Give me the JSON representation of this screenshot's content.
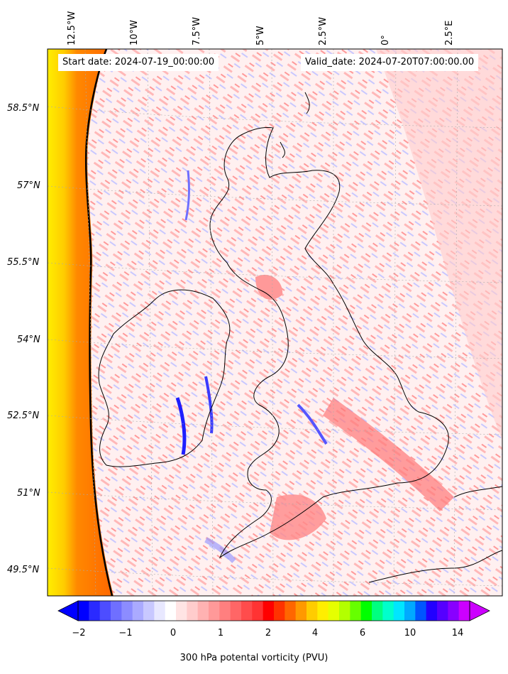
{
  "header": {
    "start_date": "Start date: 2024-07-19_00:00:00",
    "valid_date": "Valid_date: 2024-07-20T07:00:00.00"
  },
  "axes": {
    "longitude_labels": [
      "12.5°W",
      "10°W",
      "7.5°W",
      "5°W",
      "2.5°W",
      "0°",
      "2.5°E"
    ],
    "latitude_labels": [
      "58.5°N",
      "57°N",
      "55.5°N",
      "54°N",
      "52.5°N",
      "51°N",
      "49.5°N"
    ]
  },
  "colorbar": {
    "label": "300 hPa potental vorticity (PVU)",
    "tick_labels": [
      "−2",
      "−1",
      "0",
      "1",
      "2",
      "4",
      "6",
      "10",
      "14"
    ],
    "colors": [
      "#0000ff",
      "#2a2aff",
      "#4d4dff",
      "#6f6fff",
      "#8c8cff",
      "#aaaaff",
      "#c8c8ff",
      "#e8e8ff",
      "#ffffff",
      "#ffe4e4",
      "#ffcccc",
      "#ffb2b2",
      "#ff9999",
      "#ff7f7f",
      "#ff6666",
      "#ff4c4c",
      "#ff3333",
      "#ff0000",
      "#ff3300",
      "#ff6600",
      "#ff9900",
      "#ffcc00",
      "#ffee00",
      "#e6ff00",
      "#b3ff00",
      "#66ff00",
      "#00ff00",
      "#00ff80",
      "#00ffcc",
      "#00e6ff",
      "#00aaff",
      "#0055ff",
      "#2200ff",
      "#5500ff",
      "#8800ff",
      "#cc00ff"
    ]
  },
  "map": {
    "land_fill": "#fde8e8",
    "sea_fill": "#ffe6e6",
    "coast_color": "#000000"
  }
}
